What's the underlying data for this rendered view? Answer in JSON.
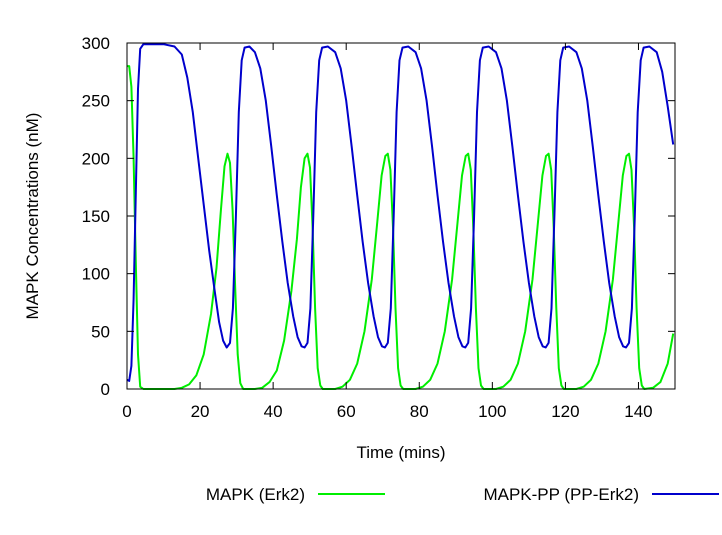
{
  "chart_data": {
    "type": "line",
    "title": "",
    "xlabel": "Time (mins)",
    "ylabel": "MAPK Concentrations (nM)",
    "xlim": [
      0,
      150
    ],
    "ylim": [
      0,
      300
    ],
    "xticks": [
      0,
      20,
      40,
      60,
      80,
      100,
      120,
      140
    ],
    "yticks": [
      0,
      50,
      100,
      150,
      200,
      250,
      300
    ],
    "grid": false,
    "legend_position": "bottom",
    "series": [
      {
        "name": "MAPK (Erk2)",
        "color": "#00ee00",
        "points": [
          [
            0,
            280
          ],
          [
            0.6,
            280
          ],
          [
            1.2,
            262
          ],
          [
            1.8,
            200
          ],
          [
            2.4,
            110
          ],
          [
            3.0,
            30
          ],
          [
            3.6,
            2
          ],
          [
            4.5,
            0
          ],
          [
            13,
            0
          ],
          [
            15,
            1
          ],
          [
            17,
            4
          ],
          [
            19,
            12
          ],
          [
            21,
            30
          ],
          [
            23,
            65
          ],
          [
            24.5,
            105
          ],
          [
            25.7,
            155
          ],
          [
            26.7,
            193
          ],
          [
            27.5,
            204
          ],
          [
            28.2,
            196
          ],
          [
            28.9,
            155
          ],
          [
            29.6,
            90
          ],
          [
            30.3,
            30
          ],
          [
            31.0,
            5
          ],
          [
            31.8,
            0
          ],
          [
            35,
            0
          ],
          [
            37,
            1
          ],
          [
            39,
            6
          ],
          [
            41,
            16
          ],
          [
            43,
            42
          ],
          [
            45,
            85
          ],
          [
            46.5,
            130
          ],
          [
            47.6,
            175
          ],
          [
            48.6,
            200
          ],
          [
            49.4,
            204
          ],
          [
            50.1,
            192
          ],
          [
            50.8,
            140
          ],
          [
            51.5,
            70
          ],
          [
            52.2,
            18
          ],
          [
            52.9,
            3
          ],
          [
            53.6,
            0
          ],
          [
            57,
            0
          ],
          [
            59,
            2
          ],
          [
            61,
            8
          ],
          [
            63,
            22
          ],
          [
            65,
            50
          ],
          [
            67,
            95
          ],
          [
            68.5,
            145
          ],
          [
            69.7,
            185
          ],
          [
            70.7,
            202
          ],
          [
            71.4,
            204
          ],
          [
            72.1,
            190
          ],
          [
            72.8,
            140
          ],
          [
            73.5,
            70
          ],
          [
            74.2,
            18
          ],
          [
            74.9,
            3
          ],
          [
            75.6,
            0
          ],
          [
            79,
            0
          ],
          [
            81,
            2
          ],
          [
            83,
            8
          ],
          [
            85,
            22
          ],
          [
            87,
            50
          ],
          [
            89,
            95
          ],
          [
            90.5,
            145
          ],
          [
            91.7,
            185
          ],
          [
            92.7,
            202
          ],
          [
            93.4,
            204
          ],
          [
            94.1,
            190
          ],
          [
            94.8,
            140
          ],
          [
            95.5,
            70
          ],
          [
            96.2,
            18
          ],
          [
            96.9,
            3
          ],
          [
            97.6,
            0
          ],
          [
            101,
            0
          ],
          [
            103,
            2
          ],
          [
            105,
            8
          ],
          [
            107,
            22
          ],
          [
            109,
            50
          ],
          [
            111,
            95
          ],
          [
            112.5,
            145
          ],
          [
            113.7,
            185
          ],
          [
            114.7,
            202
          ],
          [
            115.4,
            204
          ],
          [
            116.1,
            190
          ],
          [
            116.8,
            140
          ],
          [
            117.5,
            70
          ],
          [
            118.2,
            18
          ],
          [
            118.9,
            3
          ],
          [
            119.6,
            0
          ],
          [
            123,
            0
          ],
          [
            125,
            2
          ],
          [
            127,
            8
          ],
          [
            129,
            22
          ],
          [
            131,
            50
          ],
          [
            133,
            95
          ],
          [
            134.5,
            145
          ],
          [
            135.7,
            185
          ],
          [
            136.7,
            202
          ],
          [
            137.4,
            204
          ],
          [
            138.1,
            190
          ],
          [
            138.8,
            140
          ],
          [
            139.5,
            70
          ],
          [
            140.2,
            18
          ],
          [
            140.9,
            3
          ],
          [
            141.6,
            0
          ],
          [
            144,
            1
          ],
          [
            146,
            6
          ],
          [
            148,
            22
          ],
          [
            149.5,
            48
          ]
        ]
      },
      {
        "name": "MAPK-PP (PP-Erk2)",
        "color": "#0000cc",
        "points": [
          [
            0,
            8
          ],
          [
            0.6,
            7
          ],
          [
            1.2,
            20
          ],
          [
            1.8,
            78
          ],
          [
            2.4,
            170
          ],
          [
            3.0,
            260
          ],
          [
            3.6,
            295
          ],
          [
            4.5,
            299
          ],
          [
            10,
            299
          ],
          [
            13,
            297
          ],
          [
            15,
            290
          ],
          [
            16.5,
            270
          ],
          [
            18,
            240
          ],
          [
            19.5,
            200
          ],
          [
            21,
            160
          ],
          [
            22.5,
            120
          ],
          [
            24,
            85
          ],
          [
            25.2,
            58
          ],
          [
            26.3,
            42
          ],
          [
            27.3,
            36
          ],
          [
            28.2,
            40
          ],
          [
            29.0,
            70
          ],
          [
            29.8,
            150
          ],
          [
            30.6,
            240
          ],
          [
            31.4,
            285
          ],
          [
            32.2,
            296
          ],
          [
            33.5,
            297
          ],
          [
            35,
            292
          ],
          [
            36.5,
            278
          ],
          [
            38,
            250
          ],
          [
            39.5,
            210
          ],
          [
            41,
            168
          ],
          [
            42.5,
            128
          ],
          [
            44,
            92
          ],
          [
            45.5,
            63
          ],
          [
            46.7,
            45
          ],
          [
            47.8,
            37
          ],
          [
            48.6,
            36
          ],
          [
            49.4,
            40
          ],
          [
            50.2,
            70
          ],
          [
            51.0,
            150
          ],
          [
            51.8,
            240
          ],
          [
            52.6,
            285
          ],
          [
            53.4,
            296
          ],
          [
            55,
            297
          ],
          [
            57,
            292
          ],
          [
            58.5,
            278
          ],
          [
            60,
            250
          ],
          [
            61.5,
            210
          ],
          [
            63,
            168
          ],
          [
            64.5,
            128
          ],
          [
            66,
            92
          ],
          [
            67.5,
            63
          ],
          [
            68.7,
            45
          ],
          [
            69.8,
            37
          ],
          [
            70.6,
            36
          ],
          [
            71.4,
            40
          ],
          [
            72.2,
            70
          ],
          [
            73.0,
            150
          ],
          [
            73.8,
            240
          ],
          [
            74.6,
            285
          ],
          [
            75.4,
            296
          ],
          [
            77,
            297
          ],
          [
            79,
            292
          ],
          [
            80.5,
            278
          ],
          [
            82,
            250
          ],
          [
            83.5,
            210
          ],
          [
            85,
            168
          ],
          [
            86.5,
            128
          ],
          [
            88,
            92
          ],
          [
            89.5,
            63
          ],
          [
            90.7,
            45
          ],
          [
            91.8,
            37
          ],
          [
            92.6,
            36
          ],
          [
            93.4,
            40
          ],
          [
            94.2,
            70
          ],
          [
            95.0,
            150
          ],
          [
            95.8,
            240
          ],
          [
            96.6,
            285
          ],
          [
            97.4,
            296
          ],
          [
            99,
            297
          ],
          [
            101,
            292
          ],
          [
            102.5,
            278
          ],
          [
            104,
            250
          ],
          [
            105.5,
            210
          ],
          [
            107,
            168
          ],
          [
            108.5,
            128
          ],
          [
            110,
            92
          ],
          [
            111.5,
            63
          ],
          [
            112.7,
            45
          ],
          [
            113.8,
            37
          ],
          [
            114.6,
            36
          ],
          [
            115.4,
            40
          ],
          [
            116.2,
            70
          ],
          [
            117.0,
            150
          ],
          [
            117.8,
            240
          ],
          [
            118.6,
            285
          ],
          [
            119.4,
            296
          ],
          [
            121,
            297
          ],
          [
            123,
            292
          ],
          [
            124.5,
            278
          ],
          [
            126,
            250
          ],
          [
            127.5,
            210
          ],
          [
            129,
            168
          ],
          [
            130.5,
            128
          ],
          [
            132,
            92
          ],
          [
            133.5,
            63
          ],
          [
            134.7,
            45
          ],
          [
            135.8,
            37
          ],
          [
            136.6,
            36
          ],
          [
            137.4,
            40
          ],
          [
            138.2,
            70
          ],
          [
            139.0,
            150
          ],
          [
            139.8,
            240
          ],
          [
            140.6,
            285
          ],
          [
            141.4,
            296
          ],
          [
            143,
            297
          ],
          [
            145,
            292
          ],
          [
            146.5,
            275
          ],
          [
            148,
            245
          ],
          [
            149.5,
            212
          ]
        ]
      }
    ],
    "legend": [
      {
        "label": "MAPK (Erk2)",
        "color": "#00ee00"
      },
      {
        "label": "MAPK-PP (PP-Erk2)",
        "color": "#0000cc"
      }
    ]
  }
}
